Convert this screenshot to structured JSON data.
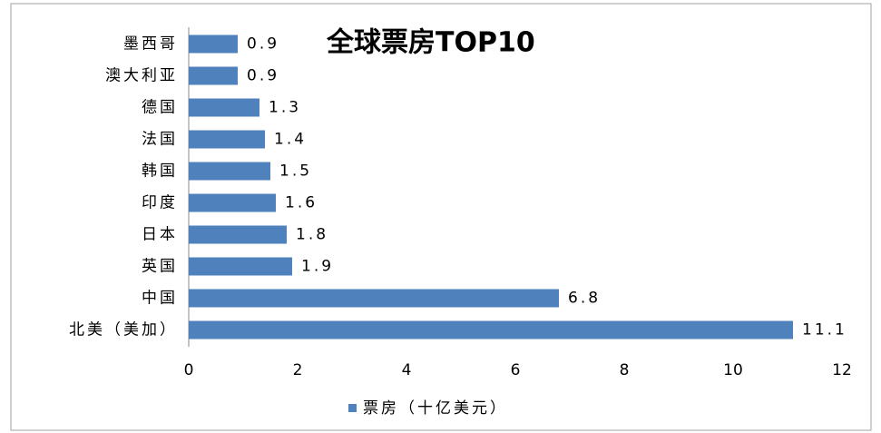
{
  "chart_data": {
    "type": "bar",
    "orientation": "horizontal",
    "title": "全球票房TOP10",
    "categories": [
      "墨西哥",
      "澳大利亚",
      "德国",
      "法国",
      "韩国",
      "印度",
      "日本",
      "英国",
      "中国",
      "北美（美加）"
    ],
    "series": [
      {
        "name": "票房（十亿美元）",
        "color": "#4f81bd",
        "values": [
          0.9,
          0.9,
          1.3,
          1.4,
          1.5,
          1.6,
          1.8,
          1.9,
          6.8,
          11.1
        ]
      }
    ],
    "xlim": [
      0,
      12
    ],
    "xticks": [
      0,
      2,
      4,
      6,
      8,
      10,
      12
    ],
    "legend": "bottom"
  }
}
